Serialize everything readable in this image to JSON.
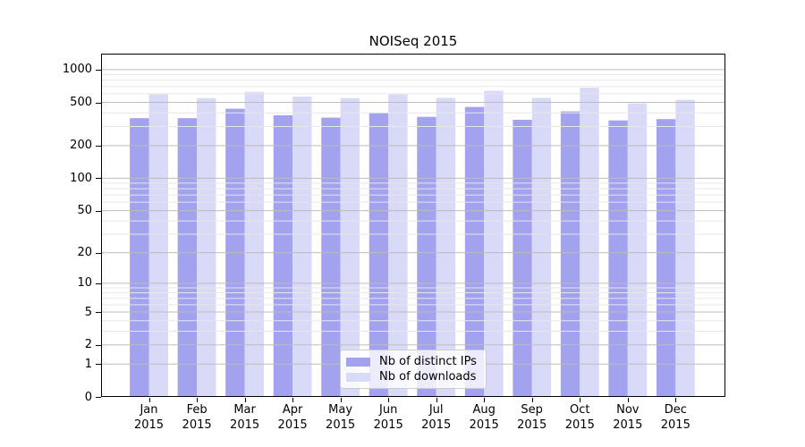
{
  "chart_data": {
    "type": "bar",
    "title": "NOISeq 2015",
    "year": "2015",
    "categories": [
      "Jan",
      "Feb",
      "Mar",
      "Apr",
      "May",
      "Jun",
      "Jul",
      "Aug",
      "Sep",
      "Oct",
      "Nov",
      "Dec"
    ],
    "series": [
      {
        "name": "Nb of distinct IPs",
        "color": "#a2a2ee",
        "values": [
          358,
          358,
          437,
          381,
          362,
          398,
          368,
          454,
          346,
          413,
          341,
          351
        ]
      },
      {
        "name": "Nb of downloads",
        "color": "#d9d9f8",
        "values": [
          592,
          546,
          624,
          564,
          546,
          592,
          549,
          639,
          549,
          681,
          490,
          528
        ]
      }
    ],
    "y_axis": {
      "scale": "log1p",
      "major_ticks": [
        0,
        1,
        2,
        5,
        10,
        20,
        50,
        100,
        200,
        500,
        1000
      ],
      "minor_ticks": [
        3,
        4,
        6,
        7,
        8,
        9,
        30,
        40,
        60,
        70,
        80,
        90,
        300,
        400,
        600,
        700,
        800,
        900
      ],
      "top_value": 1400
    },
    "xlabel": "",
    "ylabel": "",
    "grid": true,
    "legend_position": "bottom-center"
  },
  "colors": {
    "background": "#ffffff",
    "spine": "#000000",
    "grid_major": "#bdbdbd",
    "grid_minor": "#e7e7e7"
  }
}
